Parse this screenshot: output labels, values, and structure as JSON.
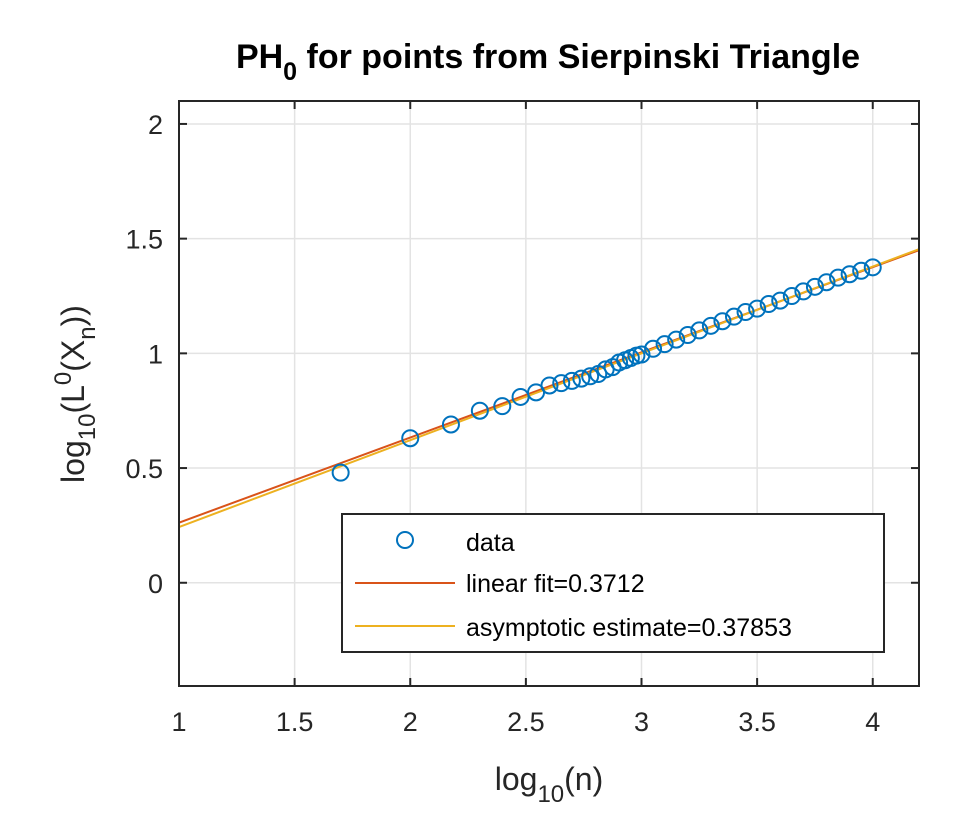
{
  "chart_data": {
    "type": "scatter",
    "title": {
      "main": "PH",
      "sub": "0",
      "rest": " for points from Sierpinski Triangle"
    },
    "xlabel": {
      "pre": "log",
      "sub": "10",
      "post": "(n)"
    },
    "ylabel": {
      "a": "log",
      "a_sub": "10",
      "b": "(L",
      "b_sup": "0",
      "c": "(X",
      "c_sub": "n",
      "d": "))"
    },
    "xlim": [
      1,
      4.2
    ],
    "ylim": [
      -0.45,
      2.1
    ],
    "x_ticks": [
      1,
      1.5,
      2,
      2.5,
      3,
      3.5,
      4
    ],
    "x_tick_labels": [
      "1",
      "1.5",
      "2",
      "2.5",
      "3",
      "3.5",
      "4"
    ],
    "y_ticks": [
      0,
      0.5,
      1,
      1.5,
      2
    ],
    "y_tick_labels": [
      "0",
      "0.5",
      "1",
      "1.5",
      "2"
    ],
    "grid": true,
    "legend_position": "bottom-right",
    "series": [
      {
        "name": "data",
        "kind": "markers",
        "color": "#0072BD",
        "x": [
          1.699,
          2.0,
          2.176,
          2.301,
          2.398,
          2.477,
          2.544,
          2.602,
          2.653,
          2.699,
          2.74,
          2.778,
          2.813,
          2.845,
          2.875,
          2.903,
          2.929,
          2.954,
          2.978,
          3.0,
          3.05,
          3.1,
          3.15,
          3.2,
          3.25,
          3.3,
          3.35,
          3.4,
          3.45,
          3.5,
          3.55,
          3.6,
          3.65,
          3.7,
          3.75,
          3.8,
          3.85,
          3.9,
          3.95,
          4.0
        ],
        "y": [
          0.48,
          0.63,
          0.69,
          0.75,
          0.77,
          0.81,
          0.83,
          0.86,
          0.87,
          0.88,
          0.89,
          0.9,
          0.91,
          0.93,
          0.94,
          0.96,
          0.97,
          0.98,
          0.99,
          0.995,
          1.02,
          1.04,
          1.06,
          1.08,
          1.1,
          1.12,
          1.14,
          1.16,
          1.18,
          1.195,
          1.215,
          1.23,
          1.25,
          1.27,
          1.29,
          1.31,
          1.33,
          1.345,
          1.36,
          1.375
        ]
      },
      {
        "name": "linear fit=0.3712",
        "kind": "line",
        "color": "#D95319",
        "x": [
          1,
          4.2
        ],
        "y": [
          0.262,
          1.4498
        ]
      },
      {
        "name": "asymptotic estimate=0.37853",
        "kind": "line",
        "color": "#EDB120",
        "x": [
          1,
          4.2
        ],
        "y": [
          0.243,
          1.4543
        ]
      }
    ]
  }
}
